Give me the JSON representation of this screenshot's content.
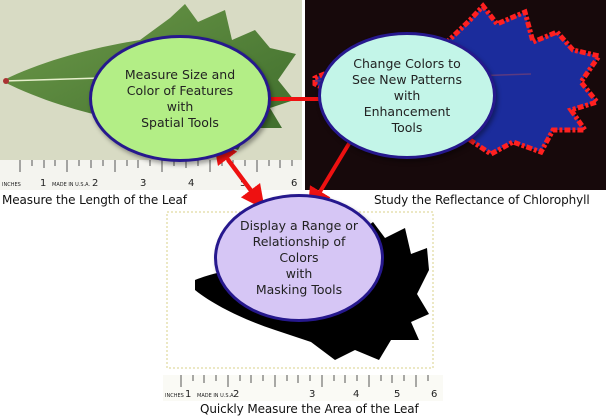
{
  "captions": {
    "leaf_length": "Measure the Length of the Leaf",
    "reflectance": "Study the Reflectance of Chlorophyll",
    "leaf_area": "Quickly Measure the Area of the Leaf"
  },
  "bubbles": {
    "spatial": "Measure Size and\nColor of Features\nwith\nSpatial Tools",
    "enhancement": "Change Colors to\nSee New Patterns\nwith\nEnhancement\nTools",
    "masking": "Display a Range or\nRelationship of\nColors\nwith\nMasking Tools"
  },
  "ruler": {
    "unit_label": "INCHES",
    "maker": "MADE IN U.S.A.",
    "numbers": [
      "1",
      "2",
      "3",
      "4",
      "5",
      "6"
    ]
  },
  "colors": {
    "arrow": "#ee1111",
    "bubble_border": "#26188d",
    "spatial_fill": "#b3ee86",
    "enhancement_fill": "#c3f5e8",
    "masking_fill": "#d6c6f5",
    "chlorophyll_red": "#ff2020",
    "leaf_blue": "#1a2a9a"
  }
}
